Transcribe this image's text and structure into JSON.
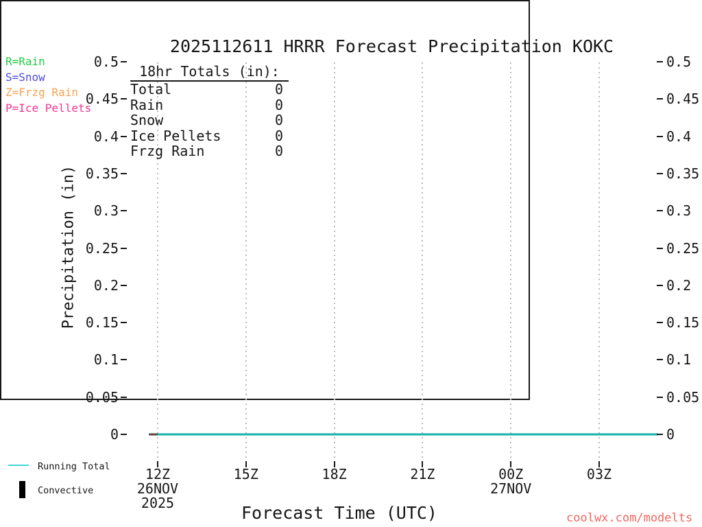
{
  "title": "2025112611 HRRR Forecast Precipitation KOKC",
  "precip_type_key": {
    "items": [
      {
        "label": "R=Rain",
        "color": "#22cc44"
      },
      {
        "label": "S=Snow",
        "color": "#4a4ae6"
      },
      {
        "label": "Z=Frzg Rain",
        "color": "#f7a254"
      },
      {
        "label": "P=Ice Pellets",
        "color": "#f23390"
      }
    ]
  },
  "totals_box": {
    "heading": "18hr Totals (in):",
    "rows": [
      {
        "label": "Total",
        "value": "0"
      },
      {
        "label": "Rain",
        "value": "0"
      },
      {
        "label": "Snow",
        "value": "0"
      },
      {
        "label": "Ice Pellets",
        "value": "0"
      },
      {
        "label": "Frzg Rain",
        "value": "0"
      }
    ]
  },
  "chart_data": {
    "type": "line",
    "title": "2025112611 HRRR Forecast Precipitation KOKC",
    "xlabel": "Forecast Time (UTC)",
    "ylabel": "Precipitation (in)",
    "ylim": [
      0,
      0.5
    ],
    "y_ticks": [
      "0",
      "0.05",
      "0.1",
      "0.15",
      "0.2",
      "0.25",
      "0.3",
      "0.35",
      "0.4",
      "0.45",
      "0.5"
    ],
    "x_ticks": [
      {
        "label": "12Z",
        "hour": 0,
        "sub": [
          "26NOV",
          "2025"
        ]
      },
      {
        "label": "15Z",
        "hour": 3,
        "sub": []
      },
      {
        "label": "18Z",
        "hour": 6,
        "sub": []
      },
      {
        "label": "21Z",
        "hour": 9,
        "sub": []
      },
      {
        "label": "00Z",
        "hour": 12,
        "sub": [
          "27NOV"
        ]
      },
      {
        "label": "03Z",
        "hour": 15,
        "sub": []
      }
    ],
    "grid": "vertical dotted lines at time ticks",
    "legend_position": "bottom-left outside plot",
    "series": [
      {
        "name": "Running Total",
        "color": "#12b2a8",
        "x_hours": [
          "12Z",
          "13Z",
          "14Z",
          "15Z",
          "16Z",
          "17Z",
          "18Z",
          "19Z",
          "20Z",
          "21Z",
          "22Z",
          "23Z",
          "00Z",
          "01Z",
          "02Z",
          "03Z",
          "04Z",
          "05Z"
        ],
        "values": [
          0,
          0,
          0,
          0,
          0,
          0,
          0,
          0,
          0,
          0,
          0,
          0,
          0,
          0,
          0,
          0,
          0,
          0
        ]
      },
      {
        "name": "Convective",
        "color": "#000000",
        "values": []
      }
    ],
    "leadin_segment": {
      "color": "#5a443c",
      "from_hour": -0.3,
      "to_hour": 0.1,
      "value": 0
    }
  },
  "bottom_legend": {
    "running_total": {
      "label": "Running Total",
      "swatch": "line",
      "swatch_color": "#3fd6d6"
    },
    "convective": {
      "label": "Convective",
      "swatch": "bar",
      "swatch_color": "#000000"
    }
  },
  "watermark": {
    "text": "coolwx.com/modelts",
    "color": "#f3655c"
  }
}
